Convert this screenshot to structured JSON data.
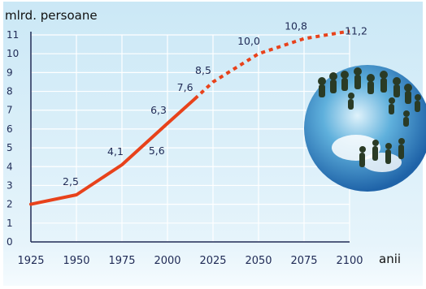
{
  "chart_data": {
    "type": "line",
    "ylabel": "mlrd. persoane",
    "xlabel": "anii",
    "x_ticks": [
      "1925",
      "1950",
      "1975",
      "2000",
      "2025",
      "2050",
      "2075",
      "2100"
    ],
    "y_ticks": [
      "0",
      "1",
      "2",
      "3",
      "4",
      "5",
      "6",
      "7",
      "8",
      "9",
      "10",
      "11"
    ],
    "xlim": [
      1925,
      2100
    ],
    "ylim": [
      0,
      11
    ],
    "grid": true,
    "series": [
      {
        "style": "solid",
        "color": "#e8421b",
        "x": [
          1925,
          1950,
          1975,
          2000,
          2015
        ],
        "y": [
          2.0,
          2.5,
          4.1,
          6.3,
          7.6
        ]
      },
      {
        "style": "dotted",
        "color": "#e8421b",
        "x": [
          2015,
          2025,
          2050,
          2075,
          2100
        ],
        "y": [
          7.6,
          8.5,
          10.0,
          10.8,
          11.2
        ]
      }
    ],
    "annotations": [
      {
        "text": "2,5",
        "x": 1950,
        "y": 2.5
      },
      {
        "text": "4,1",
        "x": 1975,
        "y": 4.1
      },
      {
        "text": "5,6",
        "x": 1995,
        "y": 5.6
      },
      {
        "text": "6,3",
        "x": 1996,
        "y": 6.3
      },
      {
        "text": "7,6",
        "x": 2015,
        "y": 7.6
      },
      {
        "text": "8,5",
        "x": 2025,
        "y": 8.5
      },
      {
        "text": "10,0",
        "x": 2050,
        "y": 10.0
      },
      {
        "text": "10,8",
        "x": 2075,
        "y": 10.8
      },
      {
        "text": "11,2",
        "x": 2100,
        "y": 11.2
      }
    ],
    "colors": {
      "background_top": "#d6eef8",
      "background_bottom": "#ffffff",
      "grid": "#ffffff",
      "axis": "#1f2a55",
      "line": "#e8421b"
    }
  }
}
